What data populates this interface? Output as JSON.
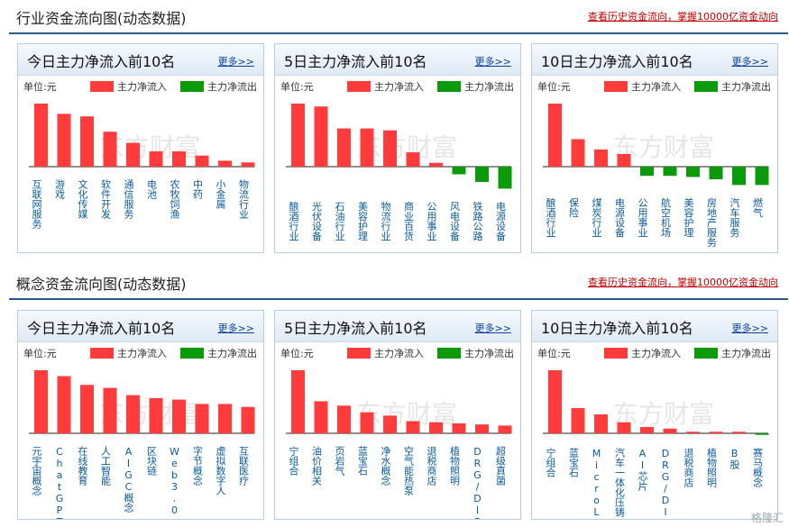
{
  "colors": {
    "inflow": "#ff3b3b",
    "outflow": "#0a9a0a",
    "accent": "#2a5a8a",
    "link": "#c00000"
  },
  "sections": [
    {
      "title": "行业资金流向图(动态数据)",
      "link": "查看历史资金流向，掌握10000亿资金动向",
      "panels": [
        {
          "title": "今日主力净流入前10名",
          "more": "更多>>",
          "unit": "单位:元",
          "legend_in": "主力净流入",
          "legend_out": "主力净流出",
          "watermark": "东方财富",
          "chart_data": {
            "type": "bar",
            "categories": [
              "互联网服务",
              "游戏",
              "文化传媒",
              "软件开发",
              "通信服务",
              "电池",
              "农牧饲渔",
              "中药",
              "小金属",
              "物流行业"
            ],
            "values": [
              74,
              62,
              59,
              41,
              28,
              18,
              18,
              13,
              7,
              5
            ]
          }
        },
        {
          "title": "5日主力净流入前10名",
          "more": "更多>>",
          "unit": "单位:元",
          "legend_in": "主力净流入",
          "legend_out": "主力净流出",
          "watermark": "东方财富",
          "chart_data": {
            "type": "bar",
            "categories": [
              "酿酒行业",
              "光伏设备",
              "石油行业",
              "美容护理",
              "物流行业",
              "商业百货",
              "公用事业",
              "风电设备",
              "铁路公路",
              "电源设备"
            ],
            "values": [
              66,
              63,
              40,
              40,
              38,
              15,
              4,
              -8,
              -16,
              -23
            ]
          }
        },
        {
          "title": "10日主力净流入前10名",
          "more": "更多>>",
          "unit": "单位:元",
          "legend_in": "主力净流入",
          "legend_out": "主力净流出",
          "watermark": "东方财富",
          "chart_data": {
            "type": "bar",
            "categories": [
              "酿酒行业",
              "保险",
              "煤炭行业",
              "电源设备",
              "公用事业",
              "航空机场",
              "美容护理",
              "房地产服务",
              "汽车服务",
              "燃气"
            ],
            "values": [
              55,
              24,
              15,
              11,
              -8,
              -8,
              -9,
              -11,
              -16,
              -16
            ]
          }
        }
      ]
    },
    {
      "title": "概念资金流向图(动态数据)",
      "link": "查看历史资金流向，掌握10000亿资金动向",
      "panels": [
        {
          "title": "今日主力净流入前10名",
          "more": "更多>>",
          "unit": "单位:元",
          "legend_in": "主力净流入",
          "legend_out": "主力净流出",
          "watermark": "东方财富",
          "chart_data": {
            "type": "bar",
            "categories": [
              "元宇宙概念",
              "ChatGPT概念",
              "在线教育",
              "人工智能",
              "AIGC概念",
              "区块链",
              "Web3.0",
              "字节概念",
              "虚拟数字人",
              "互联医疗"
            ],
            "values": [
              43,
              39,
              33,
              31,
              26,
              24,
              23,
              20,
              20,
              18
            ]
          }
        },
        {
          "title": "5日主力净流入前10名",
          "more": "更多>>",
          "unit": "单位:元",
          "legend_in": "主力净流入",
          "legend_out": "主力净流出",
          "watermark": "东方财富",
          "chart_data": {
            "type": "bar",
            "categories": [
              "宁组合",
              "油价相关",
              "页岩气",
              "蓝宝石",
              "净水概念",
              "空气能热泵",
              "退税商店",
              "植物照明",
              "DRG/DIP",
              "超级真菌"
            ],
            "values": [
              57,
              29,
              25,
              19,
              16,
              11,
              10,
              9,
              8,
              7
            ]
          }
        },
        {
          "title": "10日主力净流入前10名",
          "more": "更多>>",
          "unit": "单位:元",
          "legend_in": "主力净流入",
          "legend_out": "主力净流出",
          "watermark": "东方财富",
          "chart_data": {
            "type": "bar",
            "categories": [
              "宁组合",
              "蓝宝石",
              "MicroLED",
              "汽车一体化压铸",
              "AI芯片",
              "DRG/DIP",
              "退税商店",
              "植物照明",
              "B股",
              "赛马概念"
            ],
            "values": [
              40,
              16,
              12,
              7,
              4,
              3,
              1,
              1,
              1,
              -1
            ]
          }
        }
      ]
    }
  ],
  "footer_logo": "格隆汇"
}
